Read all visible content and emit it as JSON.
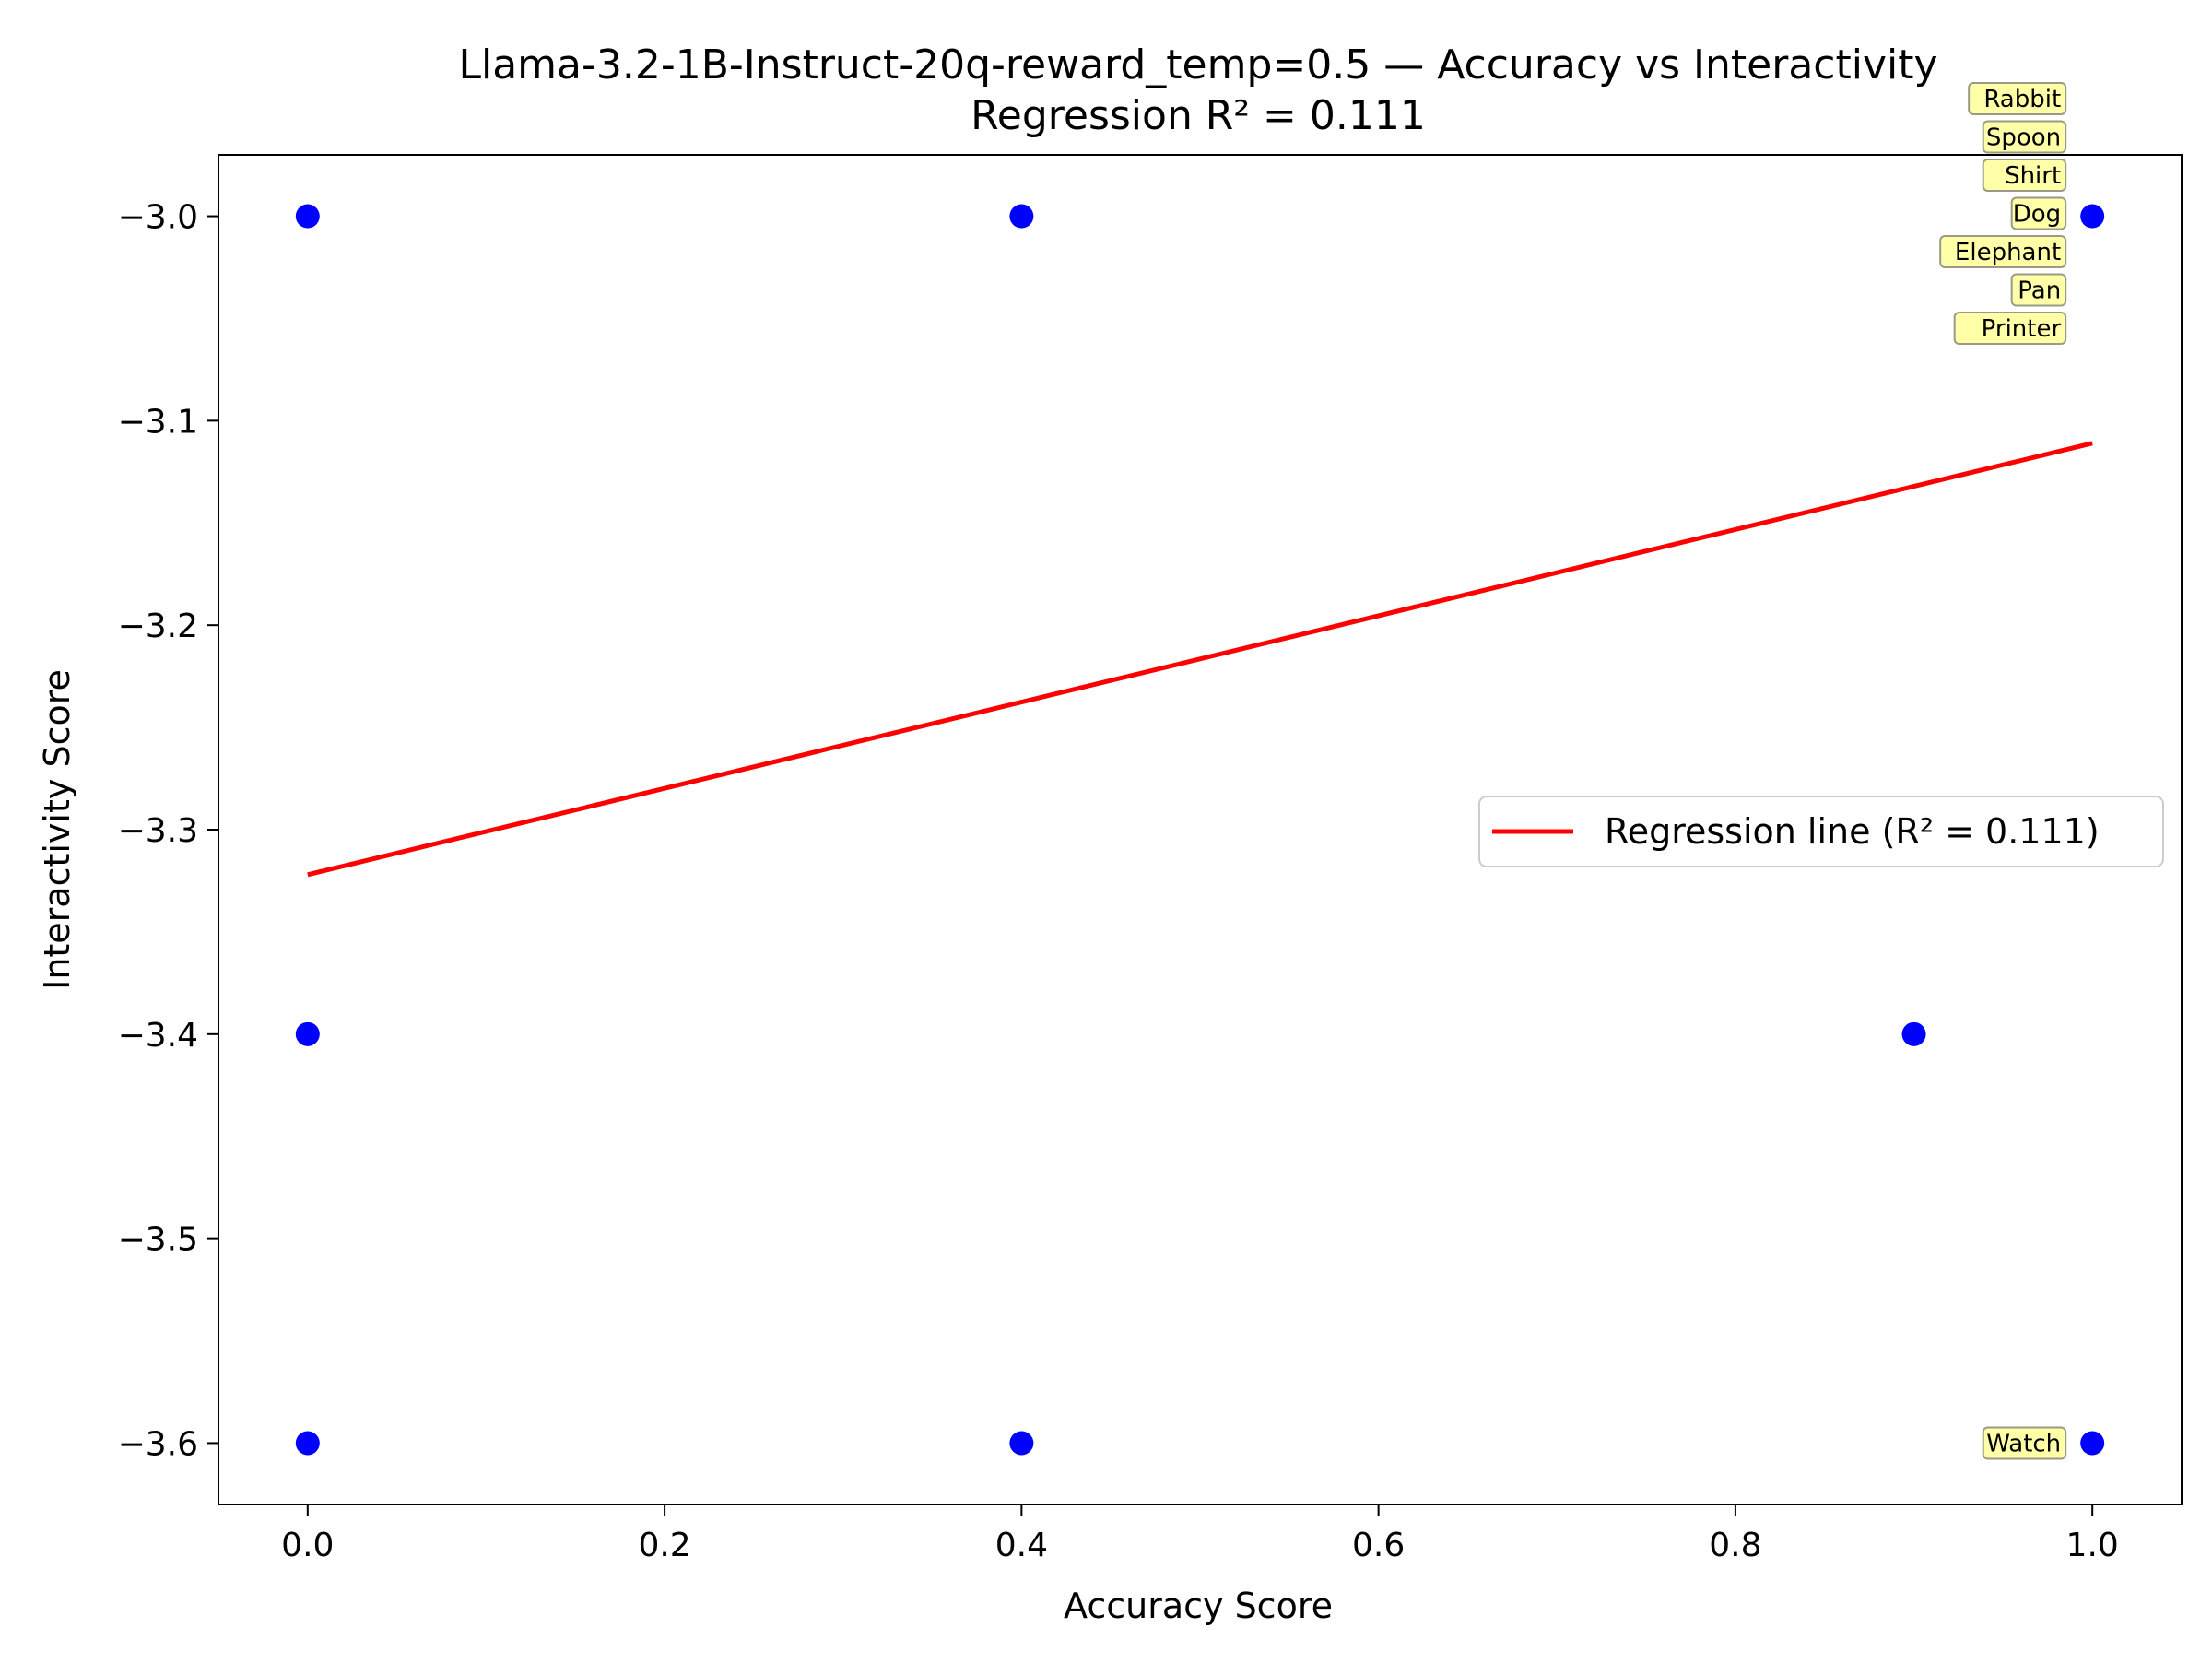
{
  "chart_data": {
    "type": "scatter",
    "title": "Llama-3.2-1B-Instruct-20q-reward_temp=0.5 — Accuracy vs Interactivity",
    "subtitle": "Regression R² = 0.111",
    "xlabel": "Accuracy Score",
    "ylabel": "Interactivity Score",
    "xlim": [
      -0.05,
      1.05
    ],
    "ylim": [
      -3.63,
      -2.97
    ],
    "grid": false,
    "legend_placement": "center-right",
    "x_ticks": [
      0.0,
      0.2,
      0.4,
      0.6,
      0.8,
      1.0
    ],
    "x_tick_labels": [
      "0.0",
      "0.2",
      "0.4",
      "0.6",
      "0.8",
      "1.0"
    ],
    "y_ticks": [
      -3.0,
      -3.1,
      -3.2,
      -3.3,
      -3.4,
      -3.5,
      -3.6
    ],
    "y_tick_labels": [
      "−3.0",
      "−3.1",
      "−3.2",
      "−3.3",
      "−3.4",
      "−3.5",
      "−3.6"
    ],
    "points": [
      {
        "x": 0.0,
        "y": -3.0
      },
      {
        "x": 0.4,
        "y": -3.0
      },
      {
        "x": 1.0,
        "y": -3.0
      },
      {
        "x": 0.0,
        "y": -3.4
      },
      {
        "x": 0.9,
        "y": -3.4
      },
      {
        "x": 0.0,
        "y": -3.6
      },
      {
        "x": 0.4,
        "y": -3.6
      },
      {
        "x": 1.0,
        "y": -3.6
      }
    ],
    "point_color": "#0000ff",
    "regression": {
      "name": "Regression line (R² = 0.111)",
      "x": [
        0.0,
        1.0
      ],
      "y": [
        -3.322,
        -3.111
      ],
      "color": "#ff0000"
    },
    "annotations": [
      {
        "text": "Rabbit",
        "x": 1.0,
        "y": -3.0
      },
      {
        "text": "Spoon",
        "x": 1.0,
        "y": -3.0
      },
      {
        "text": "Shirt",
        "x": 1.0,
        "y": -3.0
      },
      {
        "text": "Dog",
        "x": 1.0,
        "y": -3.0
      },
      {
        "text": "Elephant",
        "x": 1.0,
        "y": -3.0
      },
      {
        "text": "Pan",
        "x": 1.0,
        "y": -3.0
      },
      {
        "text": "Printer",
        "x": 1.0,
        "y": -3.0
      },
      {
        "text": "Watch",
        "x": 1.0,
        "y": -3.6
      }
    ],
    "annotation_bg": "#ffffa8"
  }
}
